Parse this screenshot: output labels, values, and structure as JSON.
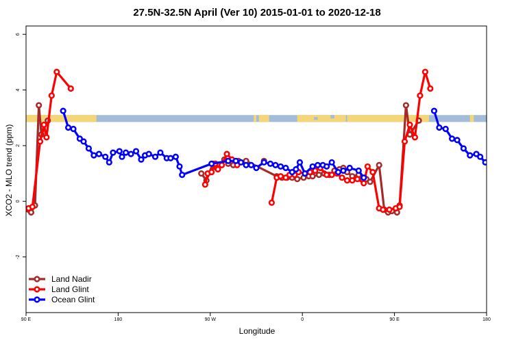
{
  "chart_data": {
    "type": "line",
    "title": "27.5N-32.5N April (Ver 10)   2015-01-01 to 2020-12-18",
    "xlabel": "Longitude",
    "ylabel": "XCO2 - MLO trend (ppm)",
    "xlim": [
      90,
      450
    ],
    "ylim": [
      -4,
      6.3
    ],
    "x_ticks": [
      {
        "value": 90,
        "label": "90 E"
      },
      {
        "value": 162,
        "label": "180"
      },
      {
        "value": 234,
        "label": "90 W"
      },
      {
        "value": 306,
        "label": "0"
      },
      {
        "value": 378,
        "label": "90 E"
      },
      {
        "value": 450,
        "label": "180"
      }
    ],
    "y_ticks": [
      {
        "value": -2,
        "label": "-2"
      },
      {
        "value": 0,
        "label": "0"
      },
      {
        "value": 2,
        "label": "2"
      },
      {
        "value": 4,
        "label": "4"
      },
      {
        "value": 6,
        "label": "6"
      }
    ],
    "map_strip": {
      "y_range": [
        2.85,
        3.1
      ],
      "land_color": "#f4d679",
      "ocean_color": "#a4bcd8"
    },
    "legend_position": "bottom-left",
    "series": [
      {
        "name": "Land Nadir",
        "color": "#a52a2a",
        "x": [
          92,
          94,
          97,
          100,
          102,
          107,
          276,
          227,
          231,
          236,
          239,
          243,
          245,
          248,
          252,
          256,
          262,
          286,
          290,
          294,
          298,
          302,
          307,
          311,
          314,
          319,
          323,
          327,
          331,
          335,
          338,
          341,
          345,
          350,
          353,
          356,
          359,
          366,
          370,
          373,
          376,
          380,
          382,
          387,
          390,
          397
        ],
        "y": [
          -0.3,
          -0.4,
          -0.15,
          3.45,
          2.4,
          2.9,
          1.45,
          1.0,
          0.75,
          1.35,
          1.2,
          1.3,
          1.5,
          1.35,
          1.3,
          1.45,
          1.45,
          0.9,
          0.85,
          0.85,
          0.85,
          0.8,
          0.85,
          0.9,
          0.9,
          0.95,
          1.0,
          0.95,
          1.1,
          1.15,
          1.2,
          1.05,
          0.9,
          0.95,
          0.8,
          0.8,
          0.7,
          1.3,
          -0.3,
          -0.4,
          -0.35,
          -0.4,
          -0.15,
          3.45,
          2.4,
          2.9
        ]
      },
      {
        "name": "Land Glint",
        "color": "#ff0000",
        "x": [
          92,
          95,
          101,
          104,
          106,
          110,
          114,
          125,
          230,
          232,
          235,
          238,
          240,
          243,
          247,
          251,
          255,
          282,
          286,
          289,
          293,
          296,
          300,
          303,
          308,
          312,
          316,
          320,
          325,
          329,
          333,
          337,
          341,
          345,
          349,
          354,
          357,
          361,
          366,
          369,
          374,
          379,
          382,
          386,
          390,
          394,
          398,
          402,
          406
        ],
        "y": [
          -0.25,
          -0.2,
          2.15,
          2.75,
          2.3,
          3.8,
          4.65,
          4.05,
          0.6,
          1.0,
          1.05,
          1.35,
          1.15,
          1.3,
          1.7,
          1.5,
          1.3,
          -0.05,
          0.85,
          0.9,
          0.85,
          0.95,
          0.95,
          1.05,
          1.0,
          1.05,
          1.1,
          1.2,
          0.95,
          0.95,
          1.0,
          0.85,
          0.75,
          0.75,
          0.8,
          0.65,
          1.25,
          1.05,
          -0.25,
          -0.3,
          -0.3,
          -0.25,
          -0.2,
          2.15,
          2.75,
          2.3,
          3.8,
          4.65,
          4.05
        ]
      },
      {
        "name": "Ocean Glint",
        "color": "#0000ff",
        "x": [
          119,
          123,
          127,
          132,
          135,
          139,
          143,
          147,
          152,
          155,
          158,
          163,
          165,
          168,
          172,
          176,
          180,
          183,
          186,
          191,
          195,
          200,
          203,
          207,
          210,
          212,
          235,
          248,
          254,
          258,
          262,
          266,
          270,
          276,
          281,
          285,
          289,
          293,
          298,
          301,
          304,
          308,
          314,
          318,
          322,
          325,
          329,
          334,
          338,
          343,
          350,
          354,
          409,
          413,
          418,
          423,
          427,
          432,
          437,
          442,
          445,
          449
        ],
        "y": [
          3.25,
          2.65,
          2.6,
          2.25,
          2.15,
          1.9,
          1.65,
          1.7,
          1.6,
          1.4,
          1.75,
          1.8,
          1.6,
          1.75,
          1.7,
          1.8,
          1.5,
          1.65,
          1.7,
          1.6,
          1.75,
          1.55,
          1.55,
          1.6,
          1.25,
          0.95,
          1.35,
          1.45,
          1.45,
          1.4,
          1.3,
          1.3,
          1.2,
          1.4,
          1.35,
          1.3,
          1.25,
          1.2,
          1.05,
          1.15,
          1.4,
          1.0,
          1.25,
          1.3,
          1.3,
          1.25,
          1.4,
          1.05,
          1.1,
          1.2,
          1.1,
          0.85,
          3.25,
          2.65,
          2.6,
          2.25,
          2.2,
          1.9,
          1.65,
          1.7,
          1.6,
          1.4
        ]
      }
    ]
  }
}
